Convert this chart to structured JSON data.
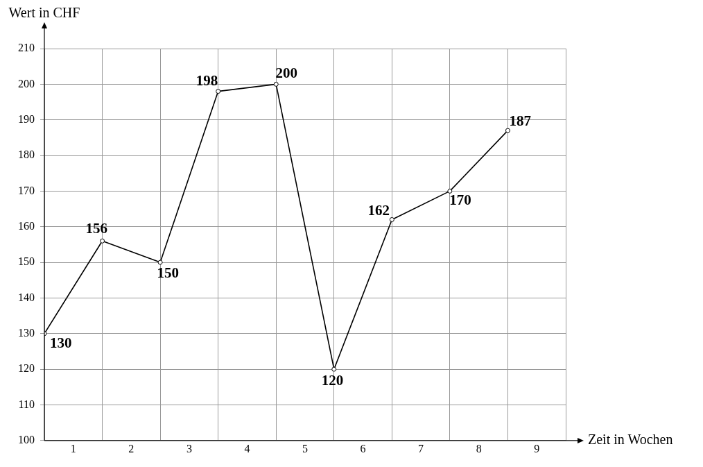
{
  "chart_data": {
    "type": "line",
    "xlabel": "Zeit in Wochen",
    "ylabel": "Wert in CHF",
    "x": [
      0,
      1,
      2,
      3,
      4,
      5,
      6,
      7,
      8
    ],
    "series": [
      {
        "color": "#000000",
        "values": [
          130,
          156,
          150,
          198,
          200,
          120,
          162,
          170,
          187
        ]
      }
    ],
    "xlim": [
      0,
      9
    ],
    "xticks": [
      {
        "value": 0,
        "label": null
      },
      {
        "value": 0.5,
        "label": "1"
      },
      {
        "value": 1,
        "label": null
      },
      {
        "value": 1.5,
        "label": "2"
      },
      {
        "value": 2,
        "label": null
      },
      {
        "value": 2.5,
        "label": "3"
      },
      {
        "value": 3,
        "label": null
      },
      {
        "value": 3.5,
        "label": "4"
      },
      {
        "value": 4,
        "label": null
      },
      {
        "value": 4.5,
        "label": "5"
      },
      {
        "value": 5,
        "label": null
      },
      {
        "value": 5.5,
        "label": "6"
      },
      {
        "value": 6,
        "label": null
      },
      {
        "value": 6.5,
        "label": "7"
      },
      {
        "value": 7,
        "label": null
      },
      {
        "value": 7.5,
        "label": "8"
      },
      {
        "value": 8,
        "label": null
      },
      {
        "value": 8.5,
        "label": "9"
      },
      {
        "value": 9,
        "label": null
      }
    ],
    "ylim": [
      100,
      210
    ],
    "yticks": [
      100,
      110,
      120,
      130,
      140,
      150,
      160,
      170,
      180,
      190,
      200,
      210
    ],
    "grid": true,
    "marker": "circle",
    "line_style": "solid",
    "data_labels": true,
    "legend": false
  }
}
